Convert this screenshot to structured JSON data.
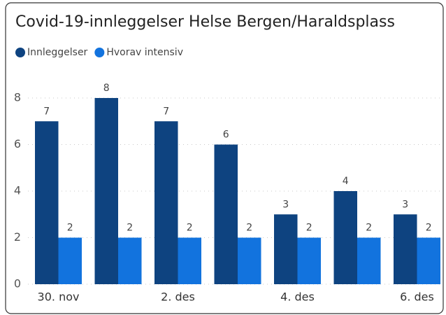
{
  "chart_data": {
    "type": "bar",
    "title": "Covid-19-innleggelser Helse Bergen/Haraldsplass",
    "categories": [
      "30. nov",
      null,
      "2. des",
      null,
      "4. des",
      null,
      "6. des"
    ],
    "series": [
      {
        "name": "Innleggelser",
        "color": "#0e4380",
        "values": [
          7,
          8,
          7,
          6,
          3,
          4,
          3
        ]
      },
      {
        "name": "Hvorav intensiv",
        "color": "#1273de",
        "values": [
          2,
          2,
          2,
          2,
          2,
          2,
          2
        ]
      }
    ],
    "ylim": [
      0,
      8
    ],
    "yticks": [
      0,
      2,
      4,
      6,
      8
    ],
    "grid": true,
    "legend": "top-left"
  }
}
